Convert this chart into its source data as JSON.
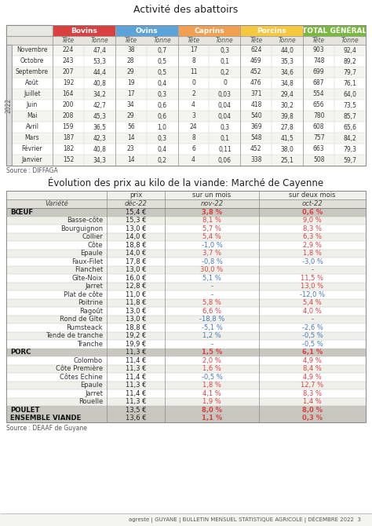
{
  "title1": "Activité des abattoirs",
  "title2": "Évolution des prix au kilo de la viande: Marché de Cayenne",
  "footer": "agreste | GUYANE | BULLETIN MENSUEL STATISTIQUE AGRICOLE | DÉCEMBRE 2022  3",
  "source1": "Source : DIFFAGA",
  "source2": "Source : DEAAF de Guyane",
  "bg_color": "#ffffff",
  "table1": {
    "col_groups": [
      "Bovins",
      "Ovins",
      "Caprins",
      "Porcins",
      "TOTAL GÉNÉRAL"
    ],
    "col_group_colors": [
      "#d94040",
      "#5ba3d9",
      "#f0a050",
      "#f5c842",
      "#7ab840"
    ],
    "sub_cols": [
      "Tête",
      "Tonne"
    ],
    "months": [
      "Novembre",
      "Octobre",
      "Septembre",
      "Août",
      "Juillet",
      "Juin",
      "Mai",
      "Avril",
      "Mars",
      "Février",
      "Janvier"
    ],
    "data": [
      [
        224,
        "47,4",
        38,
        "0,7",
        17,
        "0,3",
        624,
        "44,0",
        903,
        "92,4"
      ],
      [
        243,
        "53,3",
        28,
        "0,5",
        8,
        "0,1",
        469,
        "35,3",
        748,
        "89,2"
      ],
      [
        207,
        "44,4",
        29,
        "0,5",
        11,
        "0,2",
        452,
        "34,6",
        699,
        "79,7"
      ],
      [
        192,
        "40,8",
        19,
        "0,4",
        0,
        "0",
        476,
        "34,8",
        687,
        "76,1"
      ],
      [
        164,
        "34,2",
        17,
        "0,3",
        2,
        "0,03",
        371,
        "29,4",
        554,
        "64,0"
      ],
      [
        200,
        "42,7",
        34,
        "0,6",
        4,
        "0,04",
        418,
        "30,2",
        656,
        "73,5"
      ],
      [
        208,
        "45,3",
        29,
        "0,6",
        3,
        "0,04",
        540,
        "39,8",
        780,
        "85,7"
      ],
      [
        159,
        "36,5",
        56,
        "1,0",
        24,
        "0,3",
        369,
        "27,8",
        608,
        "65,6"
      ],
      [
        187,
        "42,3",
        14,
        "0,3",
        8,
        "0,1",
        548,
        "41,5",
        757,
        "84,2"
      ],
      [
        182,
        "40,8",
        23,
        "0,4",
        6,
        "0,11",
        452,
        "38,0",
        663,
        "79,3"
      ],
      [
        152,
        "34,3",
        14,
        "0,2",
        4,
        "0,06",
        338,
        "25,1",
        508,
        "59,7"
      ]
    ]
  },
  "table2": {
    "col_headers": [
      "prix",
      "sur un mois",
      "sur deux mois"
    ],
    "col_subheaders": [
      "déc-22",
      "nov-22",
      "oct-22"
    ],
    "rows": [
      {
        "cat": "BŒUF",
        "is_cat": true,
        "prix": "15,4 €",
        "m1": "3,8 %",
        "m2": "0,6 %",
        "m1_color": "#d94040",
        "m2_color": "#d94040"
      },
      {
        "cat": "Basse-côte",
        "is_cat": false,
        "prix": "15,3 €",
        "m1": "8,1 %",
        "m2": "9,0 %",
        "m1_color": "#d94040",
        "m2_color": "#d94040"
      },
      {
        "cat": "Bourguignon",
        "is_cat": false,
        "prix": "13,0 €",
        "m1": "5,7 %",
        "m2": "8,3 %",
        "m1_color": "#d94040",
        "m2_color": "#d94040"
      },
      {
        "cat": "Collier",
        "is_cat": false,
        "prix": "14,0 €",
        "m1": "5,4 %",
        "m2": "6,3 %",
        "m1_color": "#d94040",
        "m2_color": "#d94040"
      },
      {
        "cat": "Côte",
        "is_cat": false,
        "prix": "18,8 €",
        "m1": "-1,0 %",
        "m2": "2,9 %",
        "m1_color": "#4477bb",
        "m2_color": "#d94040"
      },
      {
        "cat": "Epaule",
        "is_cat": false,
        "prix": "14,0 €",
        "m1": "3,7 %",
        "m2": "1,8 %",
        "m1_color": "#d94040",
        "m2_color": "#d94040"
      },
      {
        "cat": "Faux-Filet",
        "is_cat": false,
        "prix": "17,8 €",
        "m1": "-0,8 %",
        "m2": "-3,0 %",
        "m1_color": "#4477bb",
        "m2_color": "#4477bb"
      },
      {
        "cat": "Flanchet",
        "is_cat": false,
        "prix": "13,0 €",
        "m1": "30,0 %",
        "m2": "-",
        "m1_color": "#d94040",
        "m2_color": "#555555"
      },
      {
        "cat": "Gîte-Noix",
        "is_cat": false,
        "prix": "16,0 €",
        "m1": "5,1 %",
        "m2": "11,5 %",
        "m1_color": "#4477bb",
        "m2_color": "#d94040"
      },
      {
        "cat": "Jarret",
        "is_cat": false,
        "prix": "12,8 €",
        "m1": "-",
        "m2": "13,0 %",
        "m1_color": "#555555",
        "m2_color": "#d94040"
      },
      {
        "cat": "Plat de côte",
        "is_cat": false,
        "prix": "11,0 €",
        "m1": "-",
        "m2": "-12,0 %",
        "m1_color": "#555555",
        "m2_color": "#4477bb"
      },
      {
        "cat": "Poitrine",
        "is_cat": false,
        "prix": "11,8 €",
        "m1": "5,8 %",
        "m2": "5,4 %",
        "m1_color": "#d94040",
        "m2_color": "#d94040"
      },
      {
        "cat": "Ragoût",
        "is_cat": false,
        "prix": "13,0 €",
        "m1": "6,6 %",
        "m2": "4,0 %",
        "m1_color": "#d94040",
        "m2_color": "#d94040"
      },
      {
        "cat": "Rond de Gîte",
        "is_cat": false,
        "prix": "13,0 €",
        "m1": "-18,8 %",
        "m2": "-",
        "m1_color": "#4477bb",
        "m2_color": "#555555"
      },
      {
        "cat": "Rumsteack",
        "is_cat": false,
        "prix": "18,8 €",
        "m1": "-5,1 %",
        "m2": "-2,6 %",
        "m1_color": "#4477bb",
        "m2_color": "#4477bb"
      },
      {
        "cat": "Tende de tranche",
        "is_cat": false,
        "prix": "19,2 €",
        "m1": "1,2 %",
        "m2": "-0,5 %",
        "m1_color": "#4477bb",
        "m2_color": "#4477bb"
      },
      {
        "cat": "Tranche",
        "is_cat": false,
        "prix": "19,9 €",
        "m1": "-",
        "m2": "-0,5 %",
        "m1_color": "#555555",
        "m2_color": "#4477bb"
      },
      {
        "cat": "PORC",
        "is_cat": true,
        "prix": "11,3 €",
        "m1": "1,5 %",
        "m2": "6,1 %",
        "m1_color": "#d94040",
        "m2_color": "#d94040"
      },
      {
        "cat": "Colombo",
        "is_cat": false,
        "prix": "11,4 €",
        "m1": "2,0 %",
        "m2": "4,9 %",
        "m1_color": "#d94040",
        "m2_color": "#d94040"
      },
      {
        "cat": "Côte Première",
        "is_cat": false,
        "prix": "11,3 €",
        "m1": "1,6 %",
        "m2": "8,4 %",
        "m1_color": "#d94040",
        "m2_color": "#d94040"
      },
      {
        "cat": "Côtes Echine",
        "is_cat": false,
        "prix": "11,4 €",
        "m1": "-0,5 %",
        "m2": "4,9 %",
        "m1_color": "#4477bb",
        "m2_color": "#d94040"
      },
      {
        "cat": "Epaule",
        "is_cat": false,
        "prix": "11,3 €",
        "m1": "1,8 %",
        "m2": "12,7 %",
        "m1_color": "#d94040",
        "m2_color": "#d94040"
      },
      {
        "cat": "Jarret",
        "is_cat": false,
        "prix": "11,4 €",
        "m1": "4,1 %",
        "m2": "8,3 %",
        "m1_color": "#d94040",
        "m2_color": "#d94040"
      },
      {
        "cat": "Rouelle",
        "is_cat": false,
        "prix": "11,3 €",
        "m1": "1,9 %",
        "m2": "1,4 %",
        "m1_color": "#d94040",
        "m2_color": "#d94040"
      },
      {
        "cat": "POULET",
        "is_cat": true,
        "prix": "13,5 €",
        "m1": "8,0 %",
        "m2": "8,0 %",
        "m1_color": "#d94040",
        "m2_color": "#d94040"
      },
      {
        "cat": "ENSEMBLE VIANDE",
        "is_cat": true,
        "prix": "13,6 €",
        "m1": "1,1 %",
        "m2": "0,3 %",
        "m1_color": "#d94040",
        "m2_color": "#d94040"
      }
    ]
  }
}
